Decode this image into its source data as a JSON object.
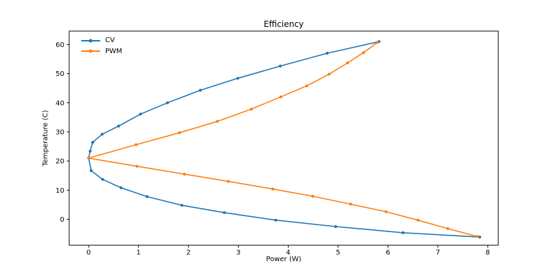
{
  "figure": {
    "background": "#ffffff",
    "text_color": "#000000",
    "spine_color": "#000000"
  },
  "chart_data": {
    "type": "line",
    "title": "Efficiency",
    "xlabel": "Power (W)",
    "ylabel": "Temperature (C)",
    "xlim": [
      -0.39,
      8.21
    ],
    "ylim": [
      -8.9,
      64.6
    ],
    "xticks": [
      0,
      1,
      2,
      3,
      4,
      5,
      6,
      7,
      8
    ],
    "yticks": [
      0,
      10,
      20,
      30,
      40,
      50,
      60
    ],
    "grid": false,
    "legend_position": "upper left",
    "legend_entries": [
      "CV",
      "PWM"
    ],
    "series": [
      {
        "name": "CV",
        "color": "#1f77b4",
        "marker": "point",
        "points": [
          [
            5.82,
            61.0
          ],
          [
            4.78,
            57.0
          ],
          [
            3.84,
            52.6
          ],
          [
            2.99,
            48.4
          ],
          [
            2.24,
            44.3
          ],
          [
            1.58,
            40.0
          ],
          [
            1.04,
            36.1
          ],
          [
            0.6,
            32.0
          ],
          [
            0.27,
            29.2
          ],
          [
            0.08,
            26.4
          ],
          [
            0.03,
            23.4
          ],
          [
            0.0,
            21.0
          ],
          [
            0.05,
            16.7
          ],
          [
            0.28,
            13.7
          ],
          [
            0.65,
            10.8
          ],
          [
            1.17,
            7.8
          ],
          [
            1.87,
            4.8
          ],
          [
            2.72,
            2.3
          ],
          [
            3.75,
            -0.3
          ],
          [
            4.95,
            -2.5
          ],
          [
            6.3,
            -4.6
          ],
          [
            7.84,
            -6.1
          ]
        ]
      },
      {
        "name": "PWM",
        "color": "#ff7f0e",
        "marker": "point",
        "points": [
          [
            5.79,
            60.7
          ],
          [
            5.51,
            57.2
          ],
          [
            5.19,
            53.7
          ],
          [
            4.82,
            49.8
          ],
          [
            4.37,
            45.8
          ],
          [
            3.85,
            42.0
          ],
          [
            3.26,
            37.8
          ],
          [
            2.58,
            33.6
          ],
          [
            1.82,
            29.7
          ],
          [
            0.95,
            25.6
          ],
          [
            0.0,
            21.0
          ],
          [
            0.97,
            18.2
          ],
          [
            1.92,
            15.5
          ],
          [
            2.8,
            13.0
          ],
          [
            3.69,
            10.4
          ],
          [
            4.49,
            7.9
          ],
          [
            5.25,
            5.2
          ],
          [
            5.96,
            2.6
          ],
          [
            6.6,
            -0.3
          ],
          [
            7.2,
            -3.2
          ],
          [
            7.79,
            -5.9
          ]
        ]
      }
    ]
  }
}
